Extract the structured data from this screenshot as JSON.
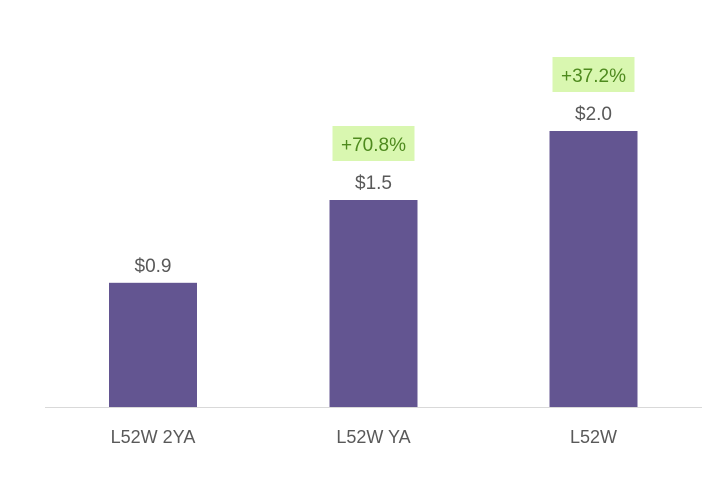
{
  "chart_data": {
    "type": "bar",
    "categories": [
      "L52W 2YA",
      "L52W YA",
      "L52W"
    ],
    "values": [
      0.9,
      1.5,
      2.0
    ],
    "value_labels": [
      "$0.9",
      "$1.5",
      "$2.0"
    ],
    "growth_labels": [
      "",
      "+70.8%",
      "+37.2%"
    ],
    "title": "",
    "xlabel": "",
    "ylabel": "",
    "grid": false,
    "legend": "none",
    "colors": {
      "bar": "#635591",
      "growth_bg": "#d9f7b0",
      "growth_text": "#4e8a1e",
      "label_text": "#595959",
      "axis": "#d9d9d9"
    }
  }
}
